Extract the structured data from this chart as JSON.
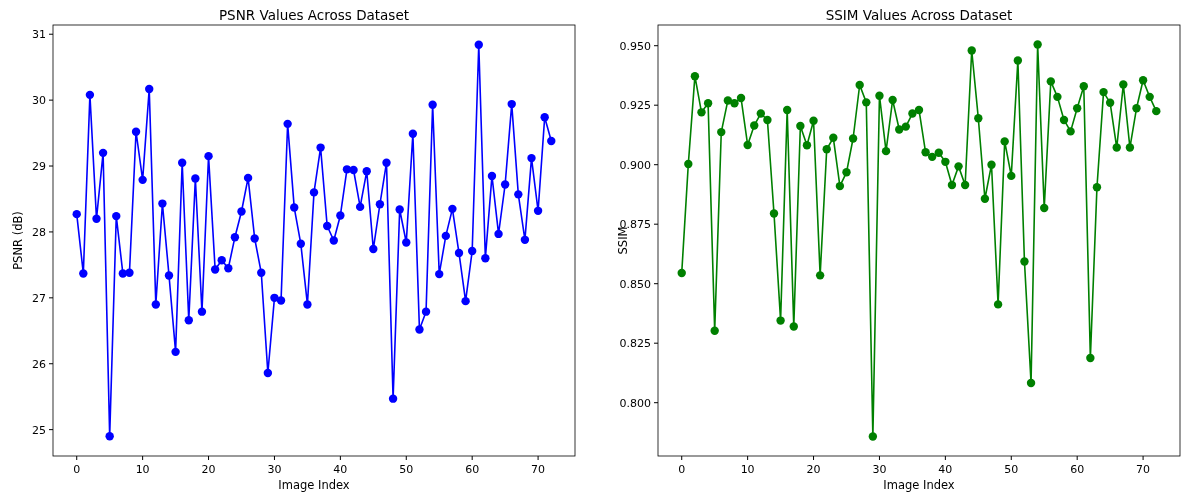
{
  "chart_data": [
    {
      "type": "line",
      "title": "PSNR Values Across Dataset",
      "xlabel": "Image Index",
      "ylabel": "PSNR (dB)",
      "marker": "circle",
      "grid": false,
      "xlim": [
        -3.6,
        75.6
      ],
      "xticks": [
        0,
        10,
        20,
        30,
        40,
        50,
        60,
        70
      ],
      "ylim": [
        24.6,
        31.14
      ],
      "yticks": [
        25,
        26,
        27,
        28,
        29,
        30,
        31
      ],
      "x": [
        0,
        1,
        2,
        3,
        4,
        5,
        6,
        7,
        8,
        9,
        10,
        11,
        12,
        13,
        14,
        15,
        16,
        17,
        18,
        19,
        20,
        21,
        22,
        23,
        24,
        25,
        26,
        27,
        28,
        29,
        30,
        31,
        32,
        33,
        34,
        35,
        36,
        37,
        38,
        39,
        40,
        41,
        42,
        43,
        44,
        45,
        46,
        47,
        48,
        49,
        50,
        51,
        52,
        53,
        54,
        55,
        56,
        57,
        58,
        59,
        60,
        61,
        62,
        63,
        64,
        65,
        66,
        67,
        68,
        69,
        70,
        71,
        72
      ],
      "series": [
        {
          "color": "#0000ff",
          "values": [
            28.27,
            27.37,
            30.08,
            28.2,
            29.2,
            24.9,
            28.24,
            27.37,
            27.38,
            29.52,
            28.79,
            30.17,
            26.9,
            28.43,
            27.34,
            26.18,
            29.05,
            26.66,
            28.81,
            26.79,
            29.15,
            27.43,
            27.57,
            27.45,
            27.92,
            28.31,
            28.82,
            27.9,
            27.38,
            25.86,
            27.0,
            26.96,
            29.64,
            28.37,
            27.82,
            26.9,
            28.6,
            29.28,
            28.09,
            27.87,
            28.25,
            28.95,
            28.94,
            28.38,
            28.92,
            27.74,
            28.42,
            29.05,
            25.47,
            28.34,
            27.84,
            29.49,
            26.52,
            26.79,
            29.93,
            27.36,
            27.94,
            28.35,
            27.68,
            26.95,
            27.71,
            30.84,
            27.6,
            28.85,
            27.97,
            28.72,
            29.94,
            28.57,
            27.88,
            29.12,
            28.32,
            29.74,
            29.38
          ]
        }
      ]
    },
    {
      "type": "line",
      "title": "SSIM Values Across Dataset",
      "xlabel": "Image Index",
      "ylabel": "SSIM",
      "marker": "circle",
      "grid": false,
      "xlim": [
        -3.6,
        75.6
      ],
      "xticks": [
        0,
        10,
        20,
        30,
        40,
        50,
        60,
        70
      ],
      "ylim": [
        0.7776,
        0.9587
      ],
      "yticks": [
        {
          "value": 0.8,
          "label": "0.800"
        },
        {
          "value": 0.825,
          "label": "0.825"
        },
        {
          "value": 0.85,
          "label": "0.850"
        },
        {
          "value": 0.875,
          "label": "0.875"
        },
        {
          "value": 0.9,
          "label": "0.900"
        },
        {
          "value": 0.925,
          "label": "0.925"
        },
        {
          "value": 0.95,
          "label": "0.950"
        }
      ],
      "x": [
        0,
        1,
        2,
        3,
        4,
        5,
        6,
        7,
        8,
        9,
        10,
        11,
        12,
        13,
        14,
        15,
        16,
        17,
        18,
        19,
        20,
        21,
        22,
        23,
        24,
        25,
        26,
        27,
        28,
        29,
        30,
        31,
        32,
        33,
        34,
        35,
        36,
        37,
        38,
        39,
        40,
        41,
        42,
        43,
        44,
        45,
        46,
        47,
        48,
        49,
        50,
        51,
        52,
        53,
        54,
        55,
        56,
        57,
        58,
        59,
        60,
        61,
        62,
        63,
        64,
        65,
        66,
        67,
        68,
        69,
        70,
        71,
        72
      ],
      "series": [
        {
          "color": "#008000",
          "values": [
            0.8545,
            0.9003,
            0.9372,
            0.922,
            0.9258,
            0.8302,
            0.9137,
            0.927,
            0.9258,
            0.928,
            0.9083,
            0.9165,
            0.9215,
            0.9188,
            0.8795,
            0.8345,
            0.923,
            0.832,
            0.9163,
            0.9082,
            0.9185,
            0.8535,
            0.9065,
            0.9113,
            0.891,
            0.8968,
            0.911,
            0.9335,
            0.9262,
            0.7858,
            0.929,
            0.9057,
            0.9272,
            0.9148,
            0.916,
            0.9215,
            0.923,
            0.9052,
            0.9033,
            0.905,
            0.9012,
            0.8915,
            0.8993,
            0.8915,
            0.948,
            0.9195,
            0.8857,
            0.9,
            0.8413,
            0.9098,
            0.8953,
            0.9438,
            0.8593,
            0.8083,
            0.9505,
            0.8818,
            0.935,
            0.9285,
            0.9188,
            0.914,
            0.9237,
            0.933,
            0.8188,
            0.8905,
            0.9305,
            0.926,
            0.9072,
            0.9337,
            0.9072,
            0.9237,
            0.9355,
            0.9285,
            0.9225
          ]
        }
      ]
    }
  ]
}
